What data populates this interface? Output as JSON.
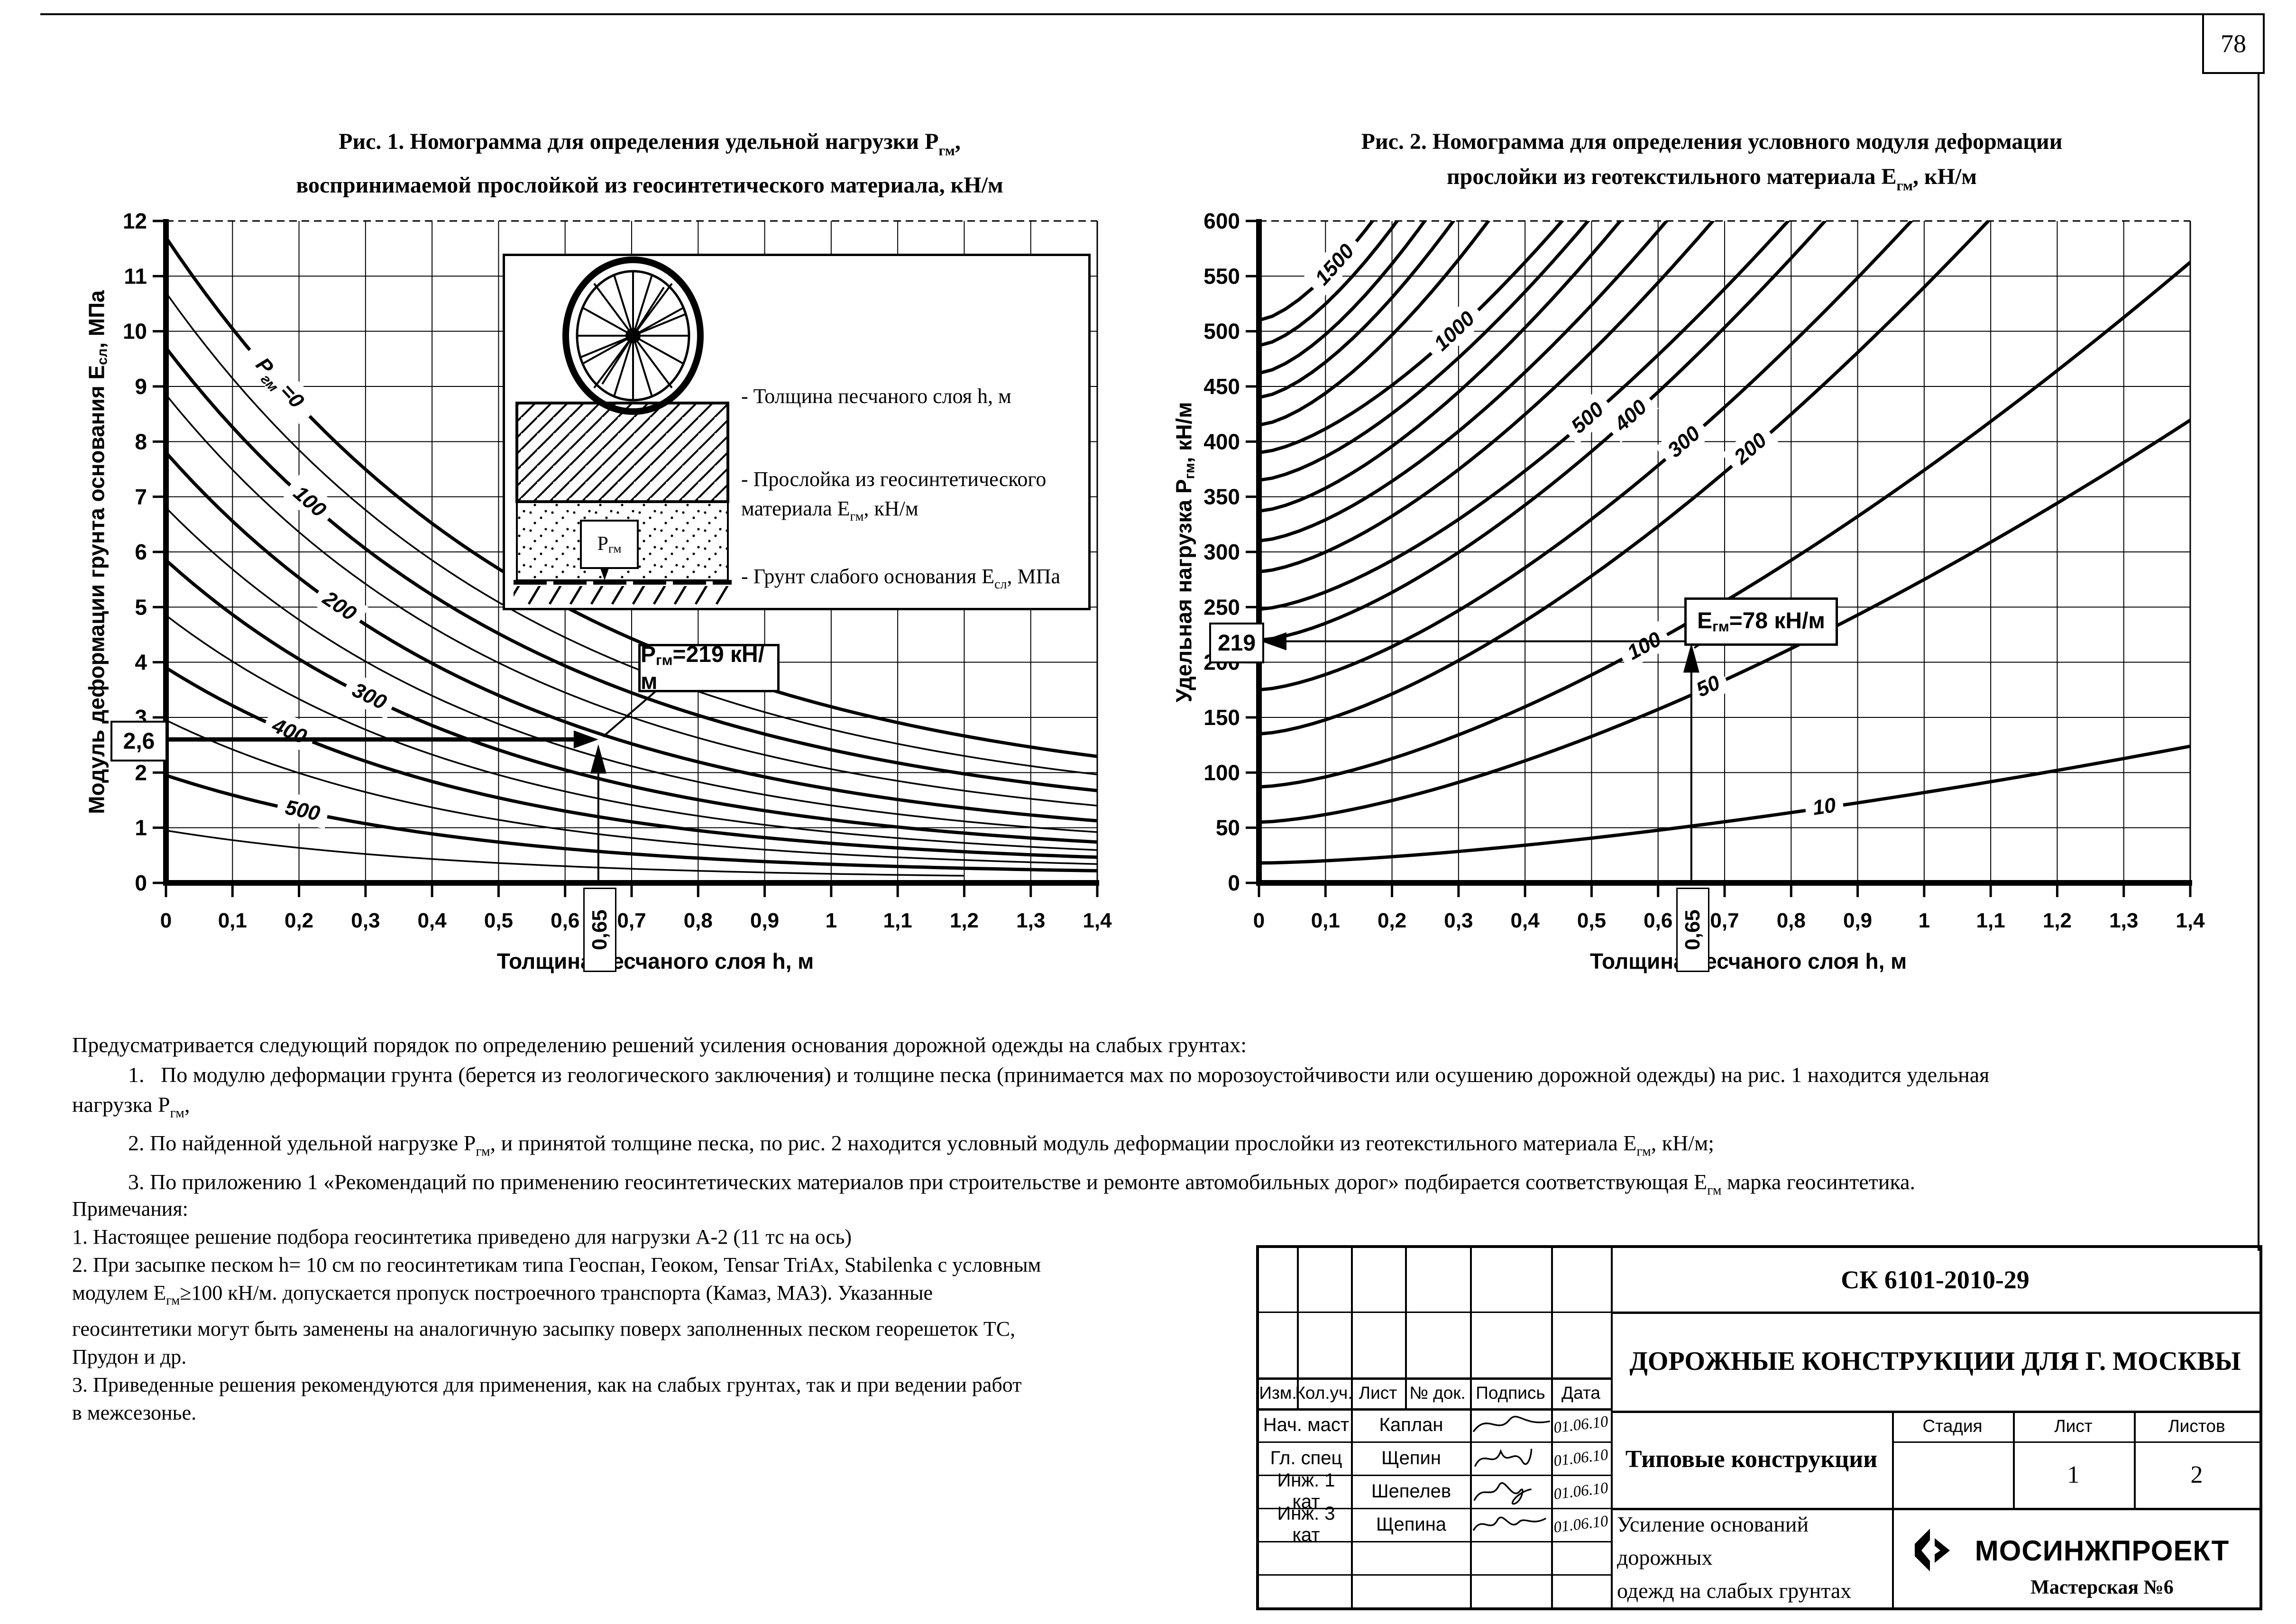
{
  "page": {
    "number": "78"
  },
  "fig1": {
    "title": [
      "Рис. 1. Номограмма для определения удельной нагрузки Р<sub>гм</sub>,",
      "воспринимаемой прослойкой из геосинтетического материала, кН/м"
    ],
    "y_axis_label": "Модуль деформации грунта основания Е<sub>сл</sub>, МПа",
    "x_axis_label": "Толщина песчаного слоя h, м",
    "callout_html": "Р<sub>гм</sub>=219 кН/м",
    "legend": {
      "load_label": "Р<sub>гм</sub>",
      "items": [
        "- Толщина песчаного слоя h, м",
        "- Прослойка из геосинтетического<br>материала Е<sub>гм</sub>, кН/м",
        "- Грунт слабого основания Е<sub>сл</sub>, МПа"
      ]
    }
  },
  "fig2": {
    "title": [
      "Рис. 2. Номограмма для определения условного модуля деформации",
      "прослойки из геотекстильного материала Е<sub>гм</sub>, кН/м"
    ],
    "y_axis_label": "Удельная нагрузка Р<sub>гм</sub>, кН/м",
    "x_axis_label": "Толщина песчаного слоя h, м",
    "callout_html": "Е<sub>гм</sub>=78 кН/м"
  },
  "chart_data": [
    {
      "type": "line",
      "title": "Рис. 1. Номограмма для определения удельной нагрузки Ргм, воспринимаемой прослойкой из геосинтетического материала, кН/м",
      "xlabel": "Толщина песчаного слоя h, м",
      "ylabel": "Модуль деформации грунта основания Есл, МПа",
      "xlim": [
        0,
        1.4
      ],
      "ylim": [
        0,
        12
      ],
      "grid": true,
      "x_tick_labels": [
        "0",
        "0,1",
        "0,2",
        "0,3",
        "0,4",
        "0,5",
        "0,6",
        "0,7",
        "0,8",
        "0,9",
        "1",
        "1,1",
        "1,2",
        "1,3",
        "1,4"
      ],
      "y_tick_labels": [
        "0",
        "1",
        "2",
        "3",
        "4",
        "5",
        "6",
        "7",
        "8",
        "9",
        "10",
        "11",
        "12"
      ],
      "curve_model": "y = start * (r + (1-r)*exp(-k*x))",
      "curves": [
        {
          "label": "Ргм =0",
          "label_parts": [
            [
              "Р",
              0
            ],
            [
              "гм ",
              1
            ],
            [
              "=0",
              0
            ]
          ],
          "start": 11.7,
          "k": 1.75,
          "r": 0.12,
          "bold": true,
          "label_x": 0.17
        },
        {
          "label": null,
          "start": 10.7,
          "k": 1.78,
          "r": 0.11,
          "bold": false
        },
        {
          "label": "100",
          "start": 9.7,
          "k": 1.8,
          "r": 0.1,
          "bold": true,
          "label_x": 0.215
        },
        {
          "label": null,
          "start": 8.85,
          "k": 1.85,
          "r": 0.09,
          "bold": false
        },
        {
          "label": "200",
          "start": 7.8,
          "k": 1.9,
          "r": 0.08,
          "bold": true,
          "label_x": 0.26
        },
        {
          "label": null,
          "start": 6.8,
          "k": 1.95,
          "r": 0.075,
          "bold": false
        },
        {
          "label": "300",
          "start": 5.85,
          "k": 2.0,
          "r": 0.07,
          "bold": true,
          "label_x": 0.305
        },
        {
          "label": null,
          "start": 4.85,
          "k": 2.05,
          "r": 0.07,
          "bold": false
        },
        {
          "label": "400",
          "start": 3.9,
          "k": 2.1,
          "r": 0.07,
          "bold": true,
          "label_x": 0.185
        },
        {
          "label": null,
          "start": 2.95,
          "k": 2.15,
          "r": 0.07,
          "bold": false
        },
        {
          "label": "500",
          "start": 1.95,
          "k": 2.2,
          "r": 0.07,
          "bold": true,
          "label_x": 0.205
        },
        {
          "label": null,
          "start": 0.95,
          "k": 2.2,
          "r": 0.07,
          "bold": false,
          "xmax": 1.2
        }
      ],
      "annotations": {
        "h": 0.65,
        "h_label": "0,65",
        "E": 2.6,
        "E_label": "2,6",
        "result": "Ргм=219 кН/м"
      }
    },
    {
      "type": "line",
      "title": "Рис. 2. Номограмма для определения условного модуля деформации прослойки из геотекстильного материала Егм, кН/м",
      "xlabel": "Толщина песчаного слоя h, м",
      "ylabel": "Удельная нагрузка Ргм, кН/м",
      "xlim": [
        0,
        1.4
      ],
      "ylim": [
        0,
        600
      ],
      "grid": true,
      "x_tick_labels": [
        "0",
        "0,1",
        "0,2",
        "0,3",
        "0,4",
        "0,5",
        "0,6",
        "0,7",
        "0,8",
        "0,9",
        "1",
        "1,1",
        "1,2",
        "1,3",
        "1,4"
      ],
      "y_tick_labels": [
        "0",
        "50",
        "100",
        "150",
        "200",
        "250",
        "300",
        "350",
        "400",
        "450",
        "500",
        "550",
        "600"
      ],
      "curve_model": "y = start * (1 + c*x^1.5)",
      "curves": [
        {
          "label": "1500",
          "start": 510,
          "c": 2.5,
          "label_x": 0.115
        },
        {
          "label": null,
          "start": 487,
          "c": 2.45
        },
        {
          "label": null,
          "start": 462,
          "c": 2.4
        },
        {
          "label": null,
          "start": 440,
          "c": 2.3
        },
        {
          "label": null,
          "start": 415,
          "c": 2.2
        },
        {
          "label": "1000",
          "start": 390,
          "c": 1.75,
          "label_x": 0.295
        },
        {
          "label": null,
          "start": 365,
          "c": 1.85
        },
        {
          "label": null,
          "start": 337,
          "c": 1.95
        },
        {
          "label": null,
          "start": 310,
          "c": 1.95
        },
        {
          "label": null,
          "start": 282,
          "c": 2.0
        },
        {
          "label": "500",
          "start": 248,
          "c": 2.0,
          "label_x": 0.495
        },
        {
          "label": "400",
          "start": 220,
          "c": 2.2,
          "label_x": 0.56
        },
        {
          "label": "300",
          "start": 175,
          "c": 2.5,
          "label_x": 0.64
        },
        {
          "label": "200",
          "start": 135,
          "c": 3.0,
          "label_x": 0.74
        },
        {
          "label": "100",
          "start": 87,
          "c": 3.3,
          "label_x": 0.58
        },
        {
          "label": "50",
          "start": 55,
          "c": 4.0,
          "label_x": 0.676
        },
        {
          "label": "10",
          "start": 18,
          "c": 3.55,
          "label_x": 0.85
        }
      ],
      "annotations": {
        "h": 0.65,
        "h_label": "0,65",
        "P": 219,
        "P_label": "219",
        "result": "Егм=78 кН/м"
      }
    }
  ],
  "procedure": {
    "lines": [
      {
        "indent": 0,
        "html": "Предусматривается следующий порядок по определению решений усиления основания дорожной одежды на слабых грунтах:"
      },
      {
        "indent": 1,
        "html": "1.   По модулю деформации грунта (берется из геологического заключения) и толщине песка (принимается мах по морозоустойчивости или осушению дорожной одежды) на рис. 1 находится удельная"
      },
      {
        "indent": 0,
        "html": "нагрузка Р<sub>гм</sub>,"
      },
      {
        "indent": 1,
        "html": "2. По найденной удельной нагрузке Р<sub>гм</sub>, и принятой толщине песка, по рис. 2 находится условный модуль деформации прослойки из геотекстильного материала Е<sub>гм</sub>, кН/м;"
      },
      {
        "indent": 1,
        "html": "3. По приложению 1 «Рекомендаций по применению геосинтетических материалов при строительстве и ремонте автомобильных дорог» подбирается соответствующая Е<sub>гм</sub> марка геосинтетика."
      }
    ]
  },
  "notes": {
    "lines": [
      "Примечания:",
      "1. Настоящее решение подбора геосинтетика приведено для нагрузки А-2 (11 тс на ось)",
      "2. При засыпке песком h= 10 см по геосинтетикам типа Геоспан, Геоком, Tensar TriAx, Stabilenka с условным",
      "модулем Е<sub>гм</sub>≥100 кН/м. допускается пропуск построечного транспорта (Камаз, МАЗ). Указанные",
      "геосинтетики могут быть заменены на аналогичную засыпку поверх заполненных песком георешеток ТС,",
      "Прудон и др.",
      "3. Приведенные решения рекомендуются для применения, как на слабых грунтах, так и при ведении работ",
      "в межсезонье."
    ]
  },
  "stamp": {
    "doc_code": "СК 6101-2010-29",
    "doc_title": "ДОРОЖНЫЕ КОНСТРУКЦИИ ДЛЯ Г. МОСКВЫ",
    "subtitle": "Типовые конструкции",
    "sheet_title": [
      "Усиление оснований дорожных",
      "одежд на слабых грунтах"
    ],
    "org": "МОСИНЖПРОЕКТ",
    "workshop": "Мастерская №6",
    "header_cols": [
      "Изм.",
      "Кол.уч.",
      "Лист",
      "№ док.",
      "Подпись",
      "Дата"
    ],
    "rows": [
      {
        "role": "Нач. маст",
        "name": "Каплан",
        "date": "01.06.10"
      },
      {
        "role": "Гл. спец",
        "name": "Щепин",
        "date": "01.06.10"
      },
      {
        "role": "Инж. 1 кат",
        "name": "Шепелев",
        "date": "01.06.10"
      },
      {
        "role": "Инж. 3 кат",
        "name": "Щепина",
        "date": "01.06.10"
      }
    ],
    "stage_cols": [
      "Стадия",
      "Лист",
      "Листов"
    ],
    "sheet_num": "1",
    "sheets_total": "2"
  }
}
